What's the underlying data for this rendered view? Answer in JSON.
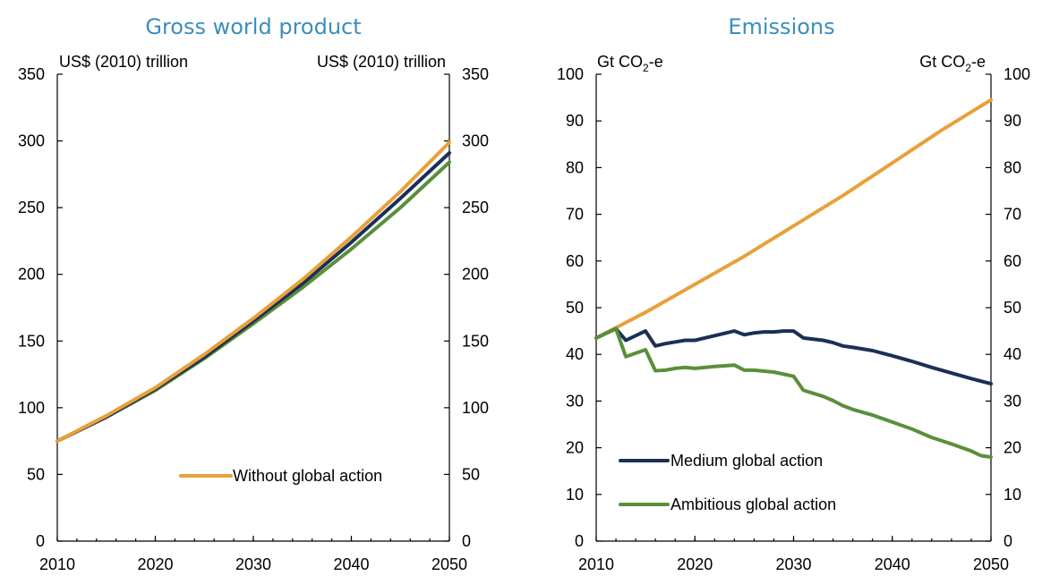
{
  "chart_data": [
    {
      "type": "line",
      "title": "Gross world product",
      "unit_label_left": "US$ (2010) trillion",
      "unit_label_right": "US$ (2010) trillion",
      "xlim": [
        2010,
        2050
      ],
      "ylim": [
        0,
        350
      ],
      "x_ticks": [
        2010,
        2020,
        2030,
        2040,
        2050
      ],
      "y_ticks": [
        0,
        50,
        100,
        150,
        200,
        250,
        300,
        350
      ],
      "x_tick_labels": [
        "2010",
        "2020",
        "2030",
        "2040",
        "2050"
      ],
      "y_tick_labels": [
        "0",
        "50",
        "100",
        "150",
        "200",
        "250",
        "300",
        "350"
      ],
      "grid": false,
      "legend_placement": "bottom-right",
      "x": [
        2010,
        2015,
        2020,
        2025,
        2030,
        2035,
        2040,
        2045,
        2050
      ],
      "series": [
        {
          "key": "ambitious",
          "name": "",
          "color": "#5a8f3a",
          "values": [
            75,
            93,
            113,
            137,
            163,
            190,
            219,
            250,
            284
          ]
        },
        {
          "key": "medium",
          "name": "",
          "color": "#1b2f56",
          "values": [
            75,
            93,
            114,
            138,
            165,
            193,
            224,
            257,
            291
          ]
        },
        {
          "key": "without",
          "name": "Without global action",
          "color": "#e9a03b",
          "values": [
            75,
            94,
            115,
            140,
            167,
            196,
            228,
            262,
            299
          ]
        }
      ],
      "legend": [
        {
          "key": "without",
          "label": "Without global action",
          "color": "#e9a03b"
        }
      ]
    },
    {
      "type": "line",
      "title": "Emissions",
      "unit_label_left": "Gt CO",
      "unit_label_left_sub": "2",
      "unit_label_left_suffix": "-e",
      "unit_label_right": "Gt CO",
      "unit_label_right_sub": "2",
      "unit_label_right_suffix": "-e",
      "xlim": [
        2010,
        2050
      ],
      "ylim": [
        0,
        100
      ],
      "x_ticks": [
        2010,
        2020,
        2030,
        2040,
        2050
      ],
      "y_ticks": [
        0,
        10,
        20,
        30,
        40,
        50,
        60,
        70,
        80,
        90,
        100
      ],
      "x_tick_labels": [
        "2010",
        "2020",
        "2030",
        "2040",
        "2050"
      ],
      "y_tick_labels": [
        "0",
        "10",
        "20",
        "30",
        "40",
        "50",
        "60",
        "70",
        "80",
        "90",
        "100"
      ],
      "grid": false,
      "legend_placement": "bottom-left",
      "series": [
        {
          "key": "without",
          "name": "",
          "color": "#e9a03b",
          "x": [
            2010,
            2015,
            2020,
            2025,
            2030,
            2035,
            2040,
            2045,
            2050
          ],
          "values": [
            43.5,
            49,
            55,
            61,
            67.5,
            74,
            81,
            88,
            94.5
          ]
        },
        {
          "key": "medium",
          "name": "Medium global action",
          "color": "#1b2f56",
          "x": [
            2010,
            2012,
            2013,
            2015,
            2016,
            2017,
            2019,
            2020,
            2022,
            2024,
            2025,
            2026,
            2027,
            2028,
            2029,
            2030,
            2031,
            2033,
            2034,
            2035,
            2036,
            2038,
            2040,
            2042,
            2044,
            2046,
            2048,
            2050
          ],
          "values": [
            43.5,
            45.5,
            43,
            45,
            41.8,
            42.3,
            43,
            43,
            44,
            45,
            44.2,
            44.6,
            44.8,
            44.8,
            45,
            45,
            43.5,
            43,
            42.5,
            41.8,
            41.5,
            40.8,
            39.7,
            38.5,
            37.2,
            36,
            34.8,
            33.7
          ]
        },
        {
          "key": "ambitious",
          "name": "Ambitious global action",
          "color": "#5a8f3a",
          "x": [
            2010,
            2012,
            2013,
            2015,
            2016,
            2017,
            2018,
            2019,
            2020,
            2022,
            2024,
            2025,
            2026,
            2027,
            2028,
            2030,
            2031,
            2033,
            2034,
            2035,
            2036,
            2038,
            2040,
            2042,
            2044,
            2046,
            2048,
            2049,
            2050
          ],
          "values": [
            43.5,
            45.5,
            39.5,
            41,
            36.5,
            36.6,
            37,
            37.2,
            37,
            37.4,
            37.7,
            36.6,
            36.6,
            36.4,
            36.2,
            35.3,
            32.3,
            31,
            30.1,
            29,
            28.2,
            27,
            25.5,
            24,
            22.2,
            20.8,
            19.3,
            18.3,
            18
          ]
        }
      ],
      "legend": [
        {
          "key": "medium",
          "label": "Medium global action",
          "color": "#1b2f56"
        },
        {
          "key": "ambitious",
          "label": "Ambitious global action",
          "color": "#5a8f3a"
        }
      ]
    }
  ]
}
